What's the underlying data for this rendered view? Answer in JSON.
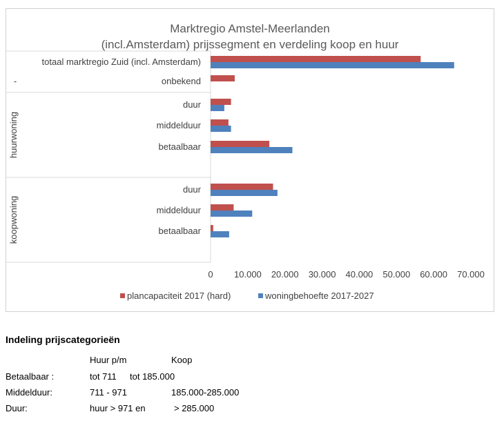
{
  "colors": {
    "series1": "#c0504d",
    "series2": "#4f81bd",
    "grid": "#d9d9d9",
    "text": "#404040"
  },
  "chart_data": {
    "type": "bar",
    "orientation": "horizontal",
    "title": [
      "Marktregio Amstel-Meerlanden",
      "(incl.Amsterdam) prijssegment en verdeling koop en huur"
    ],
    "xlim": [
      0,
      70000
    ],
    "xticks": [
      "0",
      "10.000",
      "20.000",
      "30.000",
      "40.000",
      "50.000",
      "60.000",
      "70.000"
    ],
    "groups": [
      {
        "label": "-",
        "categories": [
          "totaal marktregio Zuid (incl. Amsterdam)",
          "onbekend"
        ]
      },
      {
        "label": "huurwoning",
        "categories": [
          "duur",
          "middelduur",
          "betaalbaar"
        ]
      },
      {
        "label": "koopwoning",
        "categories": [
          "duur",
          "middelduur",
          "betaalbaar"
        ]
      }
    ],
    "series": [
      {
        "name": "plancapaciteit 2017 (hard)",
        "values": [
          56500,
          6500,
          5500,
          4800,
          15800,
          16800,
          6200,
          700
        ]
      },
      {
        "name": "woningbehoefte 2017-2027",
        "values": [
          65500,
          null,
          3700,
          5500,
          22000,
          18000,
          11200,
          5000
        ]
      }
    ],
    "grid": false,
    "legend": "bottom"
  },
  "notes": {
    "heading": "Indeling prijscategorieën",
    "col_huur": "Huur p/m",
    "col_koop": "Koop",
    "rows": [
      {
        "label": "Betaalbaar :",
        "huur": "tot 711",
        "koop": "tot 185.000"
      },
      {
        "label": "Middelduur:",
        "huur": "711 - 971",
        "koop": "185.000-285.000"
      },
      {
        "label": "Duur:",
        "huur": "huur > 971 en",
        "koop": "> 285.000"
      }
    ]
  }
}
